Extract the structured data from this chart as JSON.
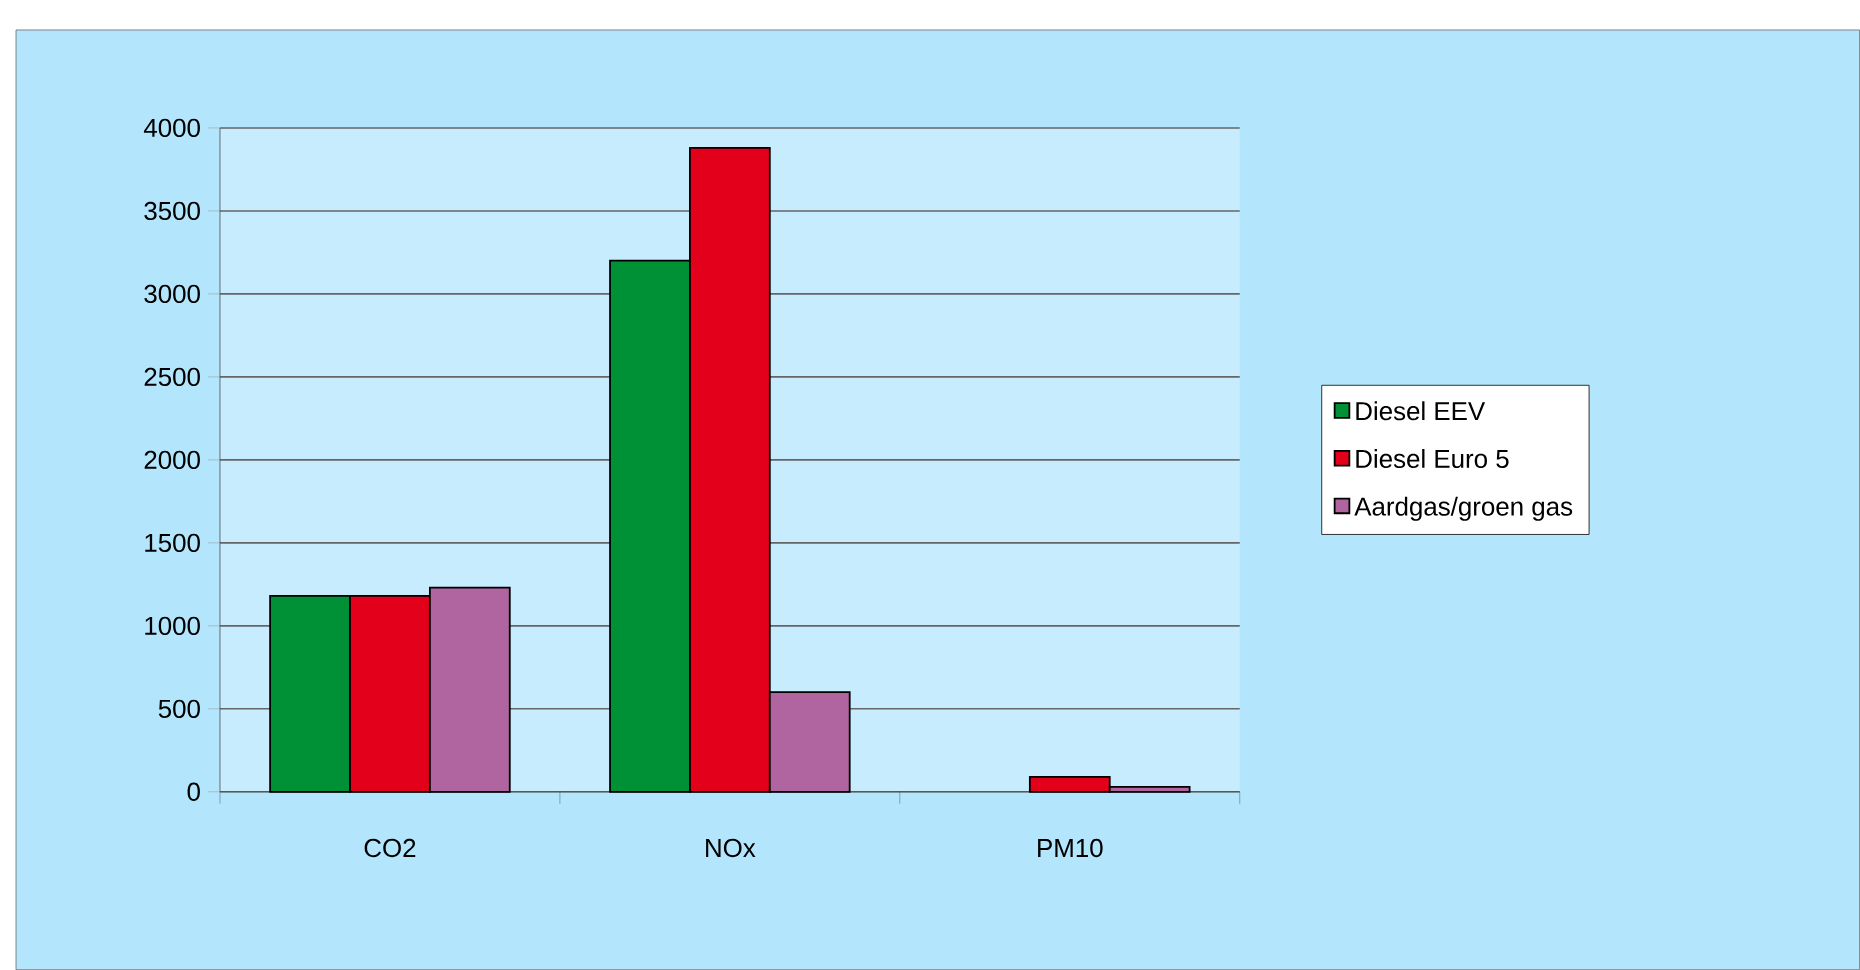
{
  "chart_data": {
    "type": "bar",
    "categories": [
      "CO2",
      "NOx",
      "PM10"
    ],
    "series": [
      {
        "name": "Diesel EEV",
        "color": "#009035",
        "values": [
          1180,
          3200,
          null
        ]
      },
      {
        "name": "Diesel Euro 5",
        "color": "#e2001a",
        "values": [
          1180,
          3880,
          90
        ]
      },
      {
        "name": "Aardgas/groen gas",
        "color": "#b065a1",
        "values": [
          1230,
          600,
          30
        ]
      }
    ],
    "ylim": [
      0,
      4000
    ],
    "yticks": [
      0,
      500,
      1000,
      1500,
      2000,
      2500,
      3000,
      3500,
      4000
    ],
    "grid": "y",
    "legend": "right"
  }
}
